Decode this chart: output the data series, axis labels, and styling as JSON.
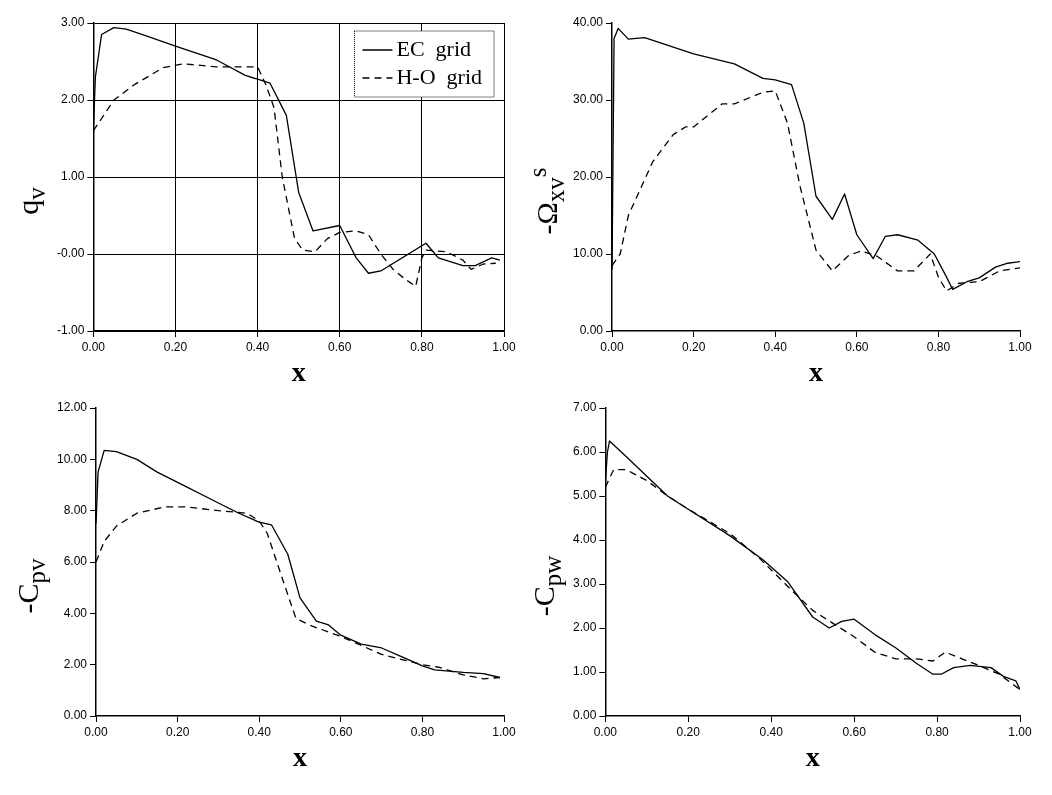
{
  "chart_data": [
    {
      "type": "line",
      "xlabel": "x",
      "ylabel": "q$_{v}$",
      "xlim": [
        0,
        1
      ],
      "ylim": [
        -1,
        3
      ],
      "xticks": [
        {
          "value": 0,
          "label": "0.00"
        },
        {
          "value": 0.2,
          "label": "0.20"
        },
        {
          "value": 0.4,
          "label": "0.40"
        },
        {
          "value": 0.6,
          "label": "0.60"
        },
        {
          "value": 0.8,
          "label": "0.80"
        },
        {
          "value": 1,
          "label": "1.00"
        }
      ],
      "yticks": [
        {
          "value": -1,
          "label": "-1.00"
        },
        {
          "value": 0,
          "label": "-0.00"
        },
        {
          "value": 1,
          "label": "1.00"
        },
        {
          "value": 2,
          "label": "2.00"
        },
        {
          "value": 3,
          "label": "3.00"
        }
      ],
      "grid": true,
      "legend": "top right",
      "marker": "none",
      "series": [
        {
          "name": "EC  grid",
          "color": "#000000",
          "line_style": "solid",
          "x": [
            0,
            0.005,
            0.02,
            0.05,
            0.08,
            0.12,
            0.2,
            0.3,
            0.37,
            0.4,
            0.43,
            0.47,
            0.5,
            0.535,
            0.6,
            0.64,
            0.67,
            0.7,
            0.81,
            0.84,
            0.9,
            0.93,
            0.97,
            0.99
          ],
          "values": [
            1.6,
            2.3,
            2.85,
            2.94,
            2.92,
            2.85,
            2.7,
            2.52,
            2.32,
            2.27,
            2.22,
            1.8,
            0.8,
            0.3,
            0.37,
            -0.05,
            -0.25,
            -0.22,
            0.14,
            -0.05,
            -0.15,
            -0.15,
            -0.05,
            -0.08
          ]
        },
        {
          "name": "H-O  grid",
          "color": "#000000",
          "line_style": "dashed",
          "x": [
            0,
            0.05,
            0.1,
            0.17,
            0.22,
            0.3,
            0.4,
            0.42,
            0.44,
            0.46,
            0.49,
            0.51,
            0.54,
            0.57,
            0.6,
            0.64,
            0.67,
            0.7,
            0.73,
            0.76,
            0.785,
            0.8,
            0.81,
            0.86,
            0.9,
            0.92,
            0.95,
            0.98
          ],
          "values": [
            1.6,
            2.0,
            2.2,
            2.42,
            2.47,
            2.43,
            2.43,
            2.2,
            1.9,
            1.0,
            0.2,
            0.05,
            0.03,
            0.2,
            0.28,
            0.3,
            0.25,
            0.0,
            -0.2,
            -0.33,
            -0.42,
            -0.05,
            0.05,
            0.03,
            -0.08,
            -0.2,
            -0.13,
            -0.12
          ]
        }
      ]
    },
    {
      "type": "line",
      "xlabel": "x",
      "ylabel": "-Ω$_{xv}$$^{s}$",
      "xlim": [
        0,
        1
      ],
      "ylim": [
        0,
        40
      ],
      "xticks": [
        {
          "value": 0,
          "label": "0.00"
        },
        {
          "value": 0.2,
          "label": "0.20"
        },
        {
          "value": 0.4,
          "label": "0.40"
        },
        {
          "value": 0.6,
          "label": "0.60"
        },
        {
          "value": 0.8,
          "label": "0.80"
        },
        {
          "value": 1,
          "label": "1.00"
        }
      ],
      "yticks": [
        {
          "value": 0,
          "label": "0.00"
        },
        {
          "value": 10,
          "label": "10.00"
        },
        {
          "value": 20,
          "label": "20.00"
        },
        {
          "value": 30,
          "label": "30.00"
        },
        {
          "value": 40,
          "label": "40.00"
        }
      ],
      "marker": "none",
      "series": [
        {
          "color": "#000000",
          "line_style": "solid",
          "x": [
            0,
            0.005,
            0.015,
            0.04,
            0.08,
            0.2,
            0.3,
            0.37,
            0.4,
            0.44,
            0.47,
            0.5,
            0.54,
            0.57,
            0.6,
            0.64,
            0.67,
            0.7,
            0.75,
            0.79,
            0.82,
            0.835,
            0.87,
            0.9,
            0.94,
            0.97,
            1.0
          ],
          "values": [
            8,
            38,
            39.3,
            37.9,
            38.1,
            36,
            34.7,
            32.8,
            32.6,
            32,
            27,
            17.5,
            14.5,
            17.8,
            12.5,
            9.4,
            12.3,
            12.5,
            11.8,
            10,
            7,
            5.4,
            6.4,
            6.9,
            8.3,
            8.8,
            9.0
          ]
        },
        {
          "color": "#000000",
          "line_style": "dashed",
          "x": [
            0,
            0.02,
            0.04,
            0.07,
            0.1,
            0.15,
            0.18,
            0.2,
            0.27,
            0.3,
            0.37,
            0.4,
            0.43,
            0.46,
            0.5,
            0.54,
            0.58,
            0.61,
            0.65,
            0.7,
            0.74,
            0.78,
            0.8,
            0.82,
            0.85,
            0.9,
            0.95,
            1.0
          ],
          "values": [
            8.5,
            10,
            15,
            18.5,
            22,
            25.5,
            26.5,
            26.5,
            29.5,
            29.5,
            31,
            31.2,
            27,
            19,
            10.5,
            7.8,
            9.8,
            10.4,
            9.7,
            7.8,
            7.8,
            10,
            7,
            5.2,
            6.2,
            6.4,
            7.8,
            8.2
          ]
        }
      ]
    },
    {
      "type": "line",
      "xlabel": "x",
      "ylabel": "-C$_{pv}$",
      "xlim": [
        0,
        1
      ],
      "ylim": [
        0,
        12
      ],
      "xticks": [
        {
          "value": 0,
          "label": "0.00"
        },
        {
          "value": 0.2,
          "label": "0.20"
        },
        {
          "value": 0.4,
          "label": "0.40"
        },
        {
          "value": 0.6,
          "label": "0.60"
        },
        {
          "value": 0.8,
          "label": "0.80"
        },
        {
          "value": 1,
          "label": "1.00"
        }
      ],
      "yticks": [
        {
          "value": 0,
          "label": "0.00"
        },
        {
          "value": 2,
          "label": "2.00"
        },
        {
          "value": 4,
          "label": "4.00"
        },
        {
          "value": 6,
          "label": "6.00"
        },
        {
          "value": 8,
          "label": "8.00"
        },
        {
          "value": 10,
          "label": "10.00"
        },
        {
          "value": 12,
          "label": "12.00"
        }
      ],
      "marker": "none",
      "series": [
        {
          "color": "#000000",
          "line_style": "solid",
          "x": [
            0,
            0.005,
            0.02,
            0.05,
            0.1,
            0.15,
            0.2,
            0.3,
            0.35,
            0.4,
            0.43,
            0.47,
            0.5,
            0.54,
            0.57,
            0.6,
            0.65,
            0.7,
            0.75,
            0.8,
            0.83,
            0.9,
            0.95,
            0.99
          ],
          "values": [
            7.5,
            9.5,
            10.35,
            10.3,
            10,
            9.5,
            9.1,
            8.3,
            7.9,
            7.55,
            7.45,
            6.3,
            4.6,
            3.7,
            3.55,
            3.15,
            2.8,
            2.65,
            2.3,
            1.95,
            1.8,
            1.7,
            1.65,
            1.5
          ]
        },
        {
          "color": "#000000",
          "line_style": "dashed",
          "x": [
            0,
            0.02,
            0.05,
            0.1,
            0.17,
            0.22,
            0.3,
            0.37,
            0.4,
            0.42,
            0.46,
            0.49,
            0.53,
            0.6,
            0.65,
            0.7,
            0.75,
            0.8,
            0.84,
            0.9,
            0.95,
            0.99
          ],
          "values": [
            6,
            6.8,
            7.4,
            7.9,
            8.15,
            8.15,
            8.0,
            7.9,
            7.6,
            7.1,
            5.2,
            3.8,
            3.5,
            3.1,
            2.75,
            2.4,
            2.2,
            2.0,
            1.9,
            1.6,
            1.45,
            1.5
          ]
        }
      ]
    },
    {
      "type": "line",
      "xlabel": "x",
      "ylabel": "-C$_{pw}$",
      "xlim": [
        0,
        1
      ],
      "ylim": [
        0,
        7
      ],
      "xticks": [
        {
          "value": 0,
          "label": "0.00"
        },
        {
          "value": 0.2,
          "label": "0.20"
        },
        {
          "value": 0.4,
          "label": "0.40"
        },
        {
          "value": 0.6,
          "label": "0.60"
        },
        {
          "value": 0.8,
          "label": "0.80"
        },
        {
          "value": 1,
          "label": "1.00"
        }
      ],
      "yticks": [
        {
          "value": 0,
          "label": "0.00"
        },
        {
          "value": 1,
          "label": "1.00"
        },
        {
          "value": 2,
          "label": "2.00"
        },
        {
          "value": 3,
          "label": "3.00"
        },
        {
          "value": 4,
          "label": "4.00"
        },
        {
          "value": 5,
          "label": "5.00"
        },
        {
          "value": 6,
          "label": "6.00"
        },
        {
          "value": 7,
          "label": "7.00"
        }
      ],
      "marker": "none",
      "series": [
        {
          "color": "#000000",
          "line_style": "solid",
          "x": [
            0,
            0.005,
            0.01,
            0.05,
            0.1,
            0.15,
            0.2,
            0.3,
            0.38,
            0.44,
            0.5,
            0.54,
            0.57,
            0.6,
            0.65,
            0.7,
            0.75,
            0.79,
            0.81,
            0.84,
            0.88,
            0.93,
            0.96,
            0.99,
            1.0
          ],
          "values": [
            5.3,
            6.0,
            6.25,
            5.9,
            5.45,
            5.0,
            4.7,
            4.1,
            3.55,
            3.05,
            2.25,
            2.0,
            2.15,
            2.2,
            1.85,
            1.55,
            1.2,
            0.95,
            0.95,
            1.1,
            1.15,
            1.1,
            0.9,
            0.8,
            0.6
          ]
        },
        {
          "color": "#000000",
          "line_style": "dashed",
          "x": [
            0,
            0.02,
            0.05,
            0.1,
            0.15,
            0.2,
            0.3,
            0.37,
            0.45,
            0.5,
            0.55,
            0.6,
            0.65,
            0.7,
            0.75,
            0.79,
            0.82,
            0.86,
            0.9,
            0.95,
            1.0
          ],
          "values": [
            5.2,
            5.6,
            5.6,
            5.35,
            5.0,
            4.7,
            4.15,
            3.6,
            2.85,
            2.4,
            2.1,
            1.8,
            1.45,
            1.3,
            1.3,
            1.25,
            1.45,
            1.3,
            1.15,
            0.95,
            0.6
          ]
        }
      ]
    }
  ]
}
